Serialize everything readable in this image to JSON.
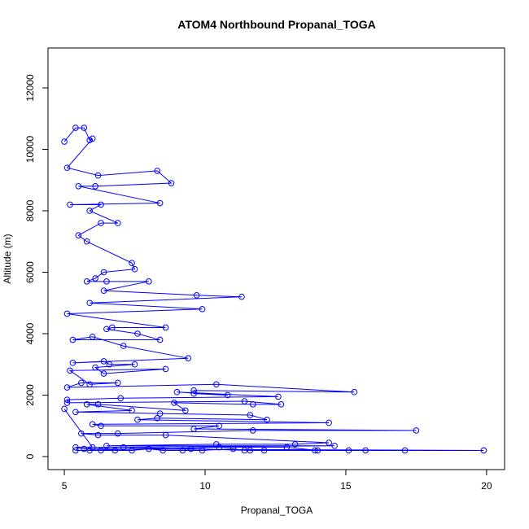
{
  "chart_data": {
    "type": "line",
    "markers": true,
    "title": "ATOM4 Northbound Propanal_TOGA",
    "x_label": "Propanal_TOGA",
    "y_label": "Altitude (m)",
    "color": "#0000ff",
    "xlim": [
      4.42,
      20.64
    ],
    "ylim": [
      -424,
      13298
    ],
    "xticks": [
      5,
      10,
      15,
      20
    ],
    "yticks": [
      0,
      2000,
      4000,
      6000,
      8000,
      10000,
      12000
    ],
    "x": [
      5.0,
      5.4,
      5.7,
      5.9,
      6.0,
      5.1,
      6.2,
      8.3,
      8.8,
      6.1,
      5.5,
      8.4,
      5.2,
      6.3,
      5.9,
      6.9,
      6.3,
      5.5,
      5.8,
      7.4,
      7.5,
      6.4,
      6.1,
      5.8,
      6.5,
      8.0,
      6.4,
      9.7,
      11.3,
      5.9,
      9.9,
      5.1,
      8.6,
      6.7,
      6.5,
      7.6,
      8.4,
      5.3,
      6.0,
      7.1,
      9.4,
      5.3,
      6.4,
      6.6,
      7.5,
      6.1,
      6.4,
      8.6,
      5.2,
      5.9,
      6.9,
      5.6,
      5.1,
      10.4,
      15.3,
      9.6,
      9.6,
      10.8,
      9.0,
      12.6,
      7.0,
      5.1,
      5.1,
      11.4,
      12.7,
      11.7,
      8.9,
      9.3,
      6.2,
      5.8,
      7.4,
      5.4,
      8.4,
      11.6,
      12.2,
      8.3,
      7.6,
      14.4,
      6.0,
      6.3,
      10.5,
      9.6,
      17.5,
      11.7,
      6.9,
      5.6,
      6.2,
      8.6,
      14.4,
      13.2,
      10.4,
      6.5,
      14.6,
      5.4,
      5.7,
      19.9,
      17.1,
      15.7,
      15.1,
      13.9,
      12.1,
      11.4,
      11.0,
      9.9,
      9.2,
      8.5,
      8.0,
      7.4,
      6.8,
      6.3,
      5.9,
      5.4,
      10.5,
      12.9,
      14.0,
      11.6,
      9.5,
      7.1,
      6.0,
      5.0
    ],
    "values": [
      10250,
      10700,
      10700,
      10300,
      10350,
      9400,
      9150,
      9300,
      8900,
      8800,
      8800,
      8250,
      8200,
      8200,
      8000,
      7600,
      7600,
      7200,
      7000,
      6300,
      6100,
      6000,
      5800,
      5700,
      5700,
      5700,
      5400,
      5250,
      5200,
      5000,
      4800,
      4650,
      4200,
      4200,
      4150,
      4000,
      3800,
      3800,
      3900,
      3600,
      3200,
      3050,
      3100,
      3000,
      3000,
      2900,
      2700,
      2850,
      2800,
      2350,
      2400,
      2400,
      2250,
      2350,
      2100,
      2150,
      2050,
      2000,
      2100,
      1950,
      1900,
      1850,
      1750,
      1800,
      1700,
      1700,
      1750,
      1500,
      1700,
      1700,
      1500,
      1450,
      1400,
      1350,
      1200,
      1250,
      1200,
      1100,
      1050,
      1000,
      1000,
      900,
      850,
      850,
      750,
      750,
      700,
      700,
      450,
      400,
      400,
      350,
      350,
      300,
      250,
      200,
      200,
      200,
      200,
      200,
      200,
      200,
      250,
      200,
      200,
      200,
      250,
      200,
      200,
      200,
      200,
      200,
      300,
      300,
      200,
      200,
      250,
      300,
      300,
      1550
    ]
  }
}
